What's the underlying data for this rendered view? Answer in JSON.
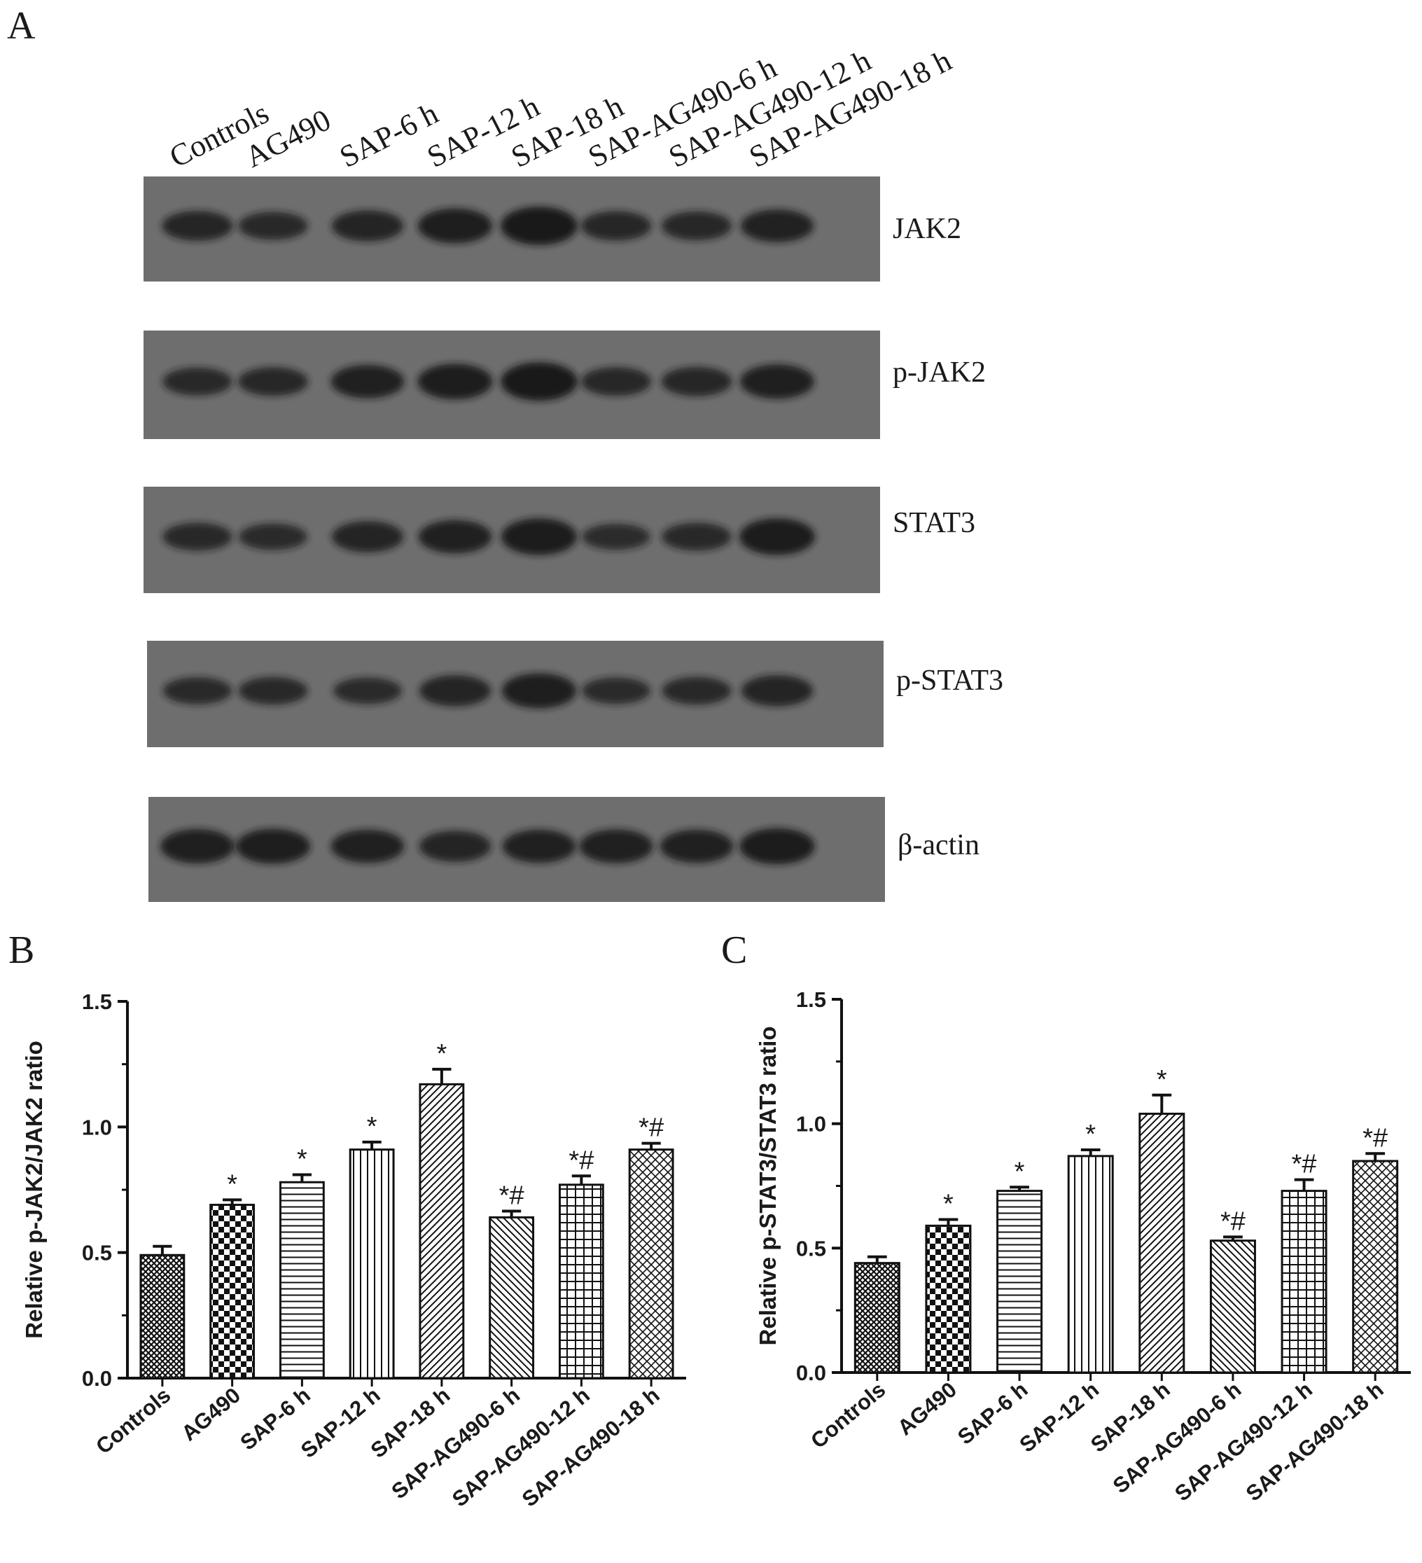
{
  "panel_a": {
    "letter": "A",
    "lanes": [
      "Controls",
      "AG490",
      "SAP-6 h",
      "SAP-12 h",
      "SAP-18 h",
      "SAP-AG490-6 h",
      "SAP-AG490-12 h",
      "SAP-AG490-18 h"
    ],
    "blots": [
      {
        "label": "JAK2",
        "intensity": [
          0.62,
          0.55,
          0.66,
          0.8,
          0.92,
          0.6,
          0.58,
          0.72
        ]
      },
      {
        "label": "p-JAK2",
        "intensity": [
          0.55,
          0.58,
          0.74,
          0.82,
          0.92,
          0.58,
          0.6,
          0.78
        ]
      },
      {
        "label": "STAT3",
        "intensity": [
          0.55,
          0.5,
          0.66,
          0.74,
          0.86,
          0.48,
          0.55,
          0.86
        ]
      },
      {
        "label": "p-STAT3",
        "intensity": [
          0.52,
          0.54,
          0.5,
          0.66,
          0.8,
          0.5,
          0.54,
          0.66
        ]
      },
      {
        "label": "β-actin",
        "intensity": [
          0.78,
          0.8,
          0.74,
          0.66,
          0.74,
          0.76,
          0.74,
          0.84
        ]
      }
    ],
    "colors": {
      "membrane": "#6e6e6e",
      "band": "#151515"
    }
  },
  "chart_data": [
    {
      "letter": "B",
      "type": "bar",
      "ylabel": "Relative  p-JAK2/JAK2 ratio",
      "ylim": [
        0,
        1.5
      ],
      "yticks": [
        "0.0",
        "0.5",
        "1.0",
        "1.5"
      ],
      "categories": [
        "Controls",
        "AG490",
        "SAP-6 h",
        "SAP-12 h",
        "SAP-18 h",
        "SAP-AG490-6 h",
        "SAP-AG490-12 h",
        "SAP-AG490-18 h"
      ],
      "values": [
        0.49,
        0.69,
        0.78,
        0.91,
        1.17,
        0.64,
        0.77,
        0.91
      ],
      "errors": [
        0.035,
        0.02,
        0.03,
        0.03,
        0.06,
        0.025,
        0.035,
        0.025
      ],
      "annotations": [
        "",
        "*",
        "*",
        "*",
        "*",
        "*#",
        "*#",
        "*#"
      ],
      "patterns": [
        "crosshatch",
        "checker",
        "hlines",
        "vlines",
        "diag-right",
        "diag-left",
        "grid",
        "diag-cross"
      ]
    },
    {
      "letter": "C",
      "type": "bar",
      "ylabel": "Relative  p-STAT3/STAT3 ratio",
      "ylim": [
        0,
        1.5
      ],
      "yticks": [
        "0.0",
        "0.5",
        "1.0",
        "1.5"
      ],
      "categories": [
        "Controls",
        "AG490",
        "SAP-6 h",
        "SAP-12 h",
        "SAP-18 h",
        "SAP-AG490-6 h",
        "SAP-AG490-12 h",
        "SAP-AG490-18 h"
      ],
      "values": [
        0.44,
        0.59,
        0.73,
        0.87,
        1.04,
        0.53,
        0.73,
        0.85
      ],
      "errors": [
        0.025,
        0.025,
        0.015,
        0.025,
        0.075,
        0.015,
        0.045,
        0.03
      ],
      "annotations": [
        "",
        "*",
        "*",
        "*",
        "*",
        "*#",
        "*#",
        "*#"
      ],
      "patterns": [
        "crosshatch",
        "checker",
        "hlines",
        "vlines",
        "diag-right",
        "diag-left",
        "grid",
        "diag-cross"
      ]
    }
  ]
}
